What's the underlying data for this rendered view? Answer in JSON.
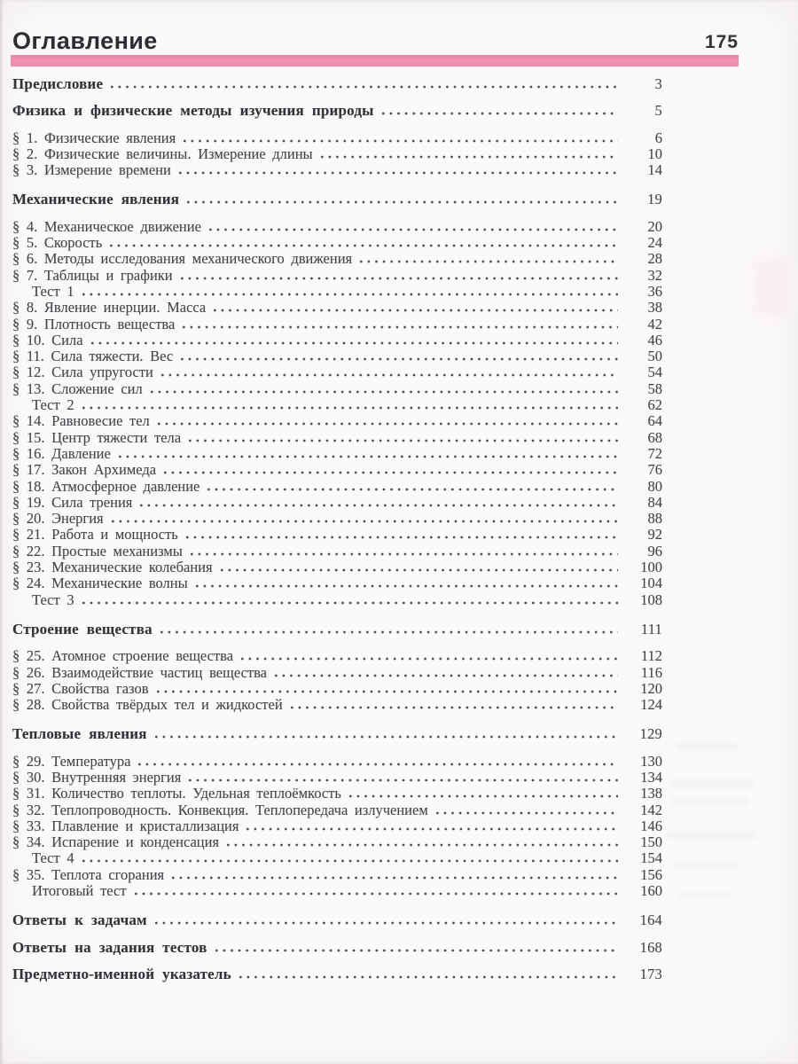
{
  "header": {
    "title": "Оглавление",
    "page_number": "175",
    "accent_color": "#ee8aab"
  },
  "toc": {
    "items": [
      {
        "kind": "chapter",
        "label": "Предисловие",
        "page": "3"
      },
      {
        "kind": "chapter",
        "label": "Физика и физические методы изучения природы",
        "page": "5"
      },
      {
        "kind": "entry",
        "label": "§ 1. Физические явления",
        "page": "6"
      },
      {
        "kind": "entry",
        "label": "§ 2. Физические величины. Измерение длины",
        "page": "10"
      },
      {
        "kind": "entry",
        "label": "§ 3. Измерение времени",
        "page": "14"
      },
      {
        "kind": "chapter",
        "label": "Механические явления",
        "page": "19"
      },
      {
        "kind": "entry",
        "label": "§ 4. Механическое движение",
        "page": "20"
      },
      {
        "kind": "entry",
        "label": "§ 5. Скорость",
        "page": "24"
      },
      {
        "kind": "entry",
        "label": "§ 6. Методы исследования механического движения",
        "page": "28"
      },
      {
        "kind": "entry",
        "label": "§ 7. Таблицы и графики",
        "page": "32"
      },
      {
        "kind": "sub",
        "label": "Тест 1",
        "page": "36"
      },
      {
        "kind": "entry",
        "label": "§ 8. Явление инерции. Масса",
        "page": "38"
      },
      {
        "kind": "entry",
        "label": "§ 9. Плотность вещества",
        "page": "42"
      },
      {
        "kind": "entry",
        "label": "§ 10. Сила",
        "page": "46"
      },
      {
        "kind": "entry",
        "label": "§ 11. Сила тяжести. Вес",
        "page": "50"
      },
      {
        "kind": "entry",
        "label": "§ 12. Сила упругости",
        "page": "54"
      },
      {
        "kind": "entry",
        "label": "§ 13. Сложение сил",
        "page": "58"
      },
      {
        "kind": "sub",
        "label": "Тест 2",
        "page": "62"
      },
      {
        "kind": "entry",
        "label": "§ 14. Равновесие тел",
        "page": "64"
      },
      {
        "kind": "entry",
        "label": "§ 15. Центр тяжести тела",
        "page": "68"
      },
      {
        "kind": "entry",
        "label": "§ 16. Давление",
        "page": "72"
      },
      {
        "kind": "entry",
        "label": "§ 17. Закон Архимеда",
        "page": "76"
      },
      {
        "kind": "entry",
        "label": "§ 18. Атмосферное давление",
        "page": "80"
      },
      {
        "kind": "entry",
        "label": "§ 19. Сила трения",
        "page": "84"
      },
      {
        "kind": "entry",
        "label": "§ 20. Энергия",
        "page": "88"
      },
      {
        "kind": "entry",
        "label": "§ 21. Работа и мощность",
        "page": "92"
      },
      {
        "kind": "entry",
        "label": "§ 22. Простые механизмы",
        "page": "96"
      },
      {
        "kind": "entry",
        "label": "§ 23. Механические колебания",
        "page": "100"
      },
      {
        "kind": "entry",
        "label": "§ 24. Механические волны",
        "page": "104"
      },
      {
        "kind": "sub",
        "label": "Тест 3",
        "page": "108"
      },
      {
        "kind": "chapter",
        "label": "Строение вещества",
        "page": "111"
      },
      {
        "kind": "entry",
        "label": "§ 25. Атомное строение вещества",
        "page": "112"
      },
      {
        "kind": "entry",
        "label": "§ 26. Взаимодействие частиц вещества",
        "page": "116"
      },
      {
        "kind": "entry",
        "label": "§ 27. Свойства газов",
        "page": "120"
      },
      {
        "kind": "entry",
        "label": "§ 28. Свойства твёрдых тел и жидкостей",
        "page": "124"
      },
      {
        "kind": "chapter",
        "label": "Тепловые явления",
        "page": "129"
      },
      {
        "kind": "entry",
        "label": "§ 29. Температура",
        "page": "130"
      },
      {
        "kind": "entry",
        "label": "§ 30. Внутренняя энергия",
        "page": "134"
      },
      {
        "kind": "entry",
        "label": "§ 31. Количество теплоты. Удельная теплоёмкость",
        "page": "138"
      },
      {
        "kind": "entry",
        "label": "§ 32. Теплопроводность. Конвекция. Теплопередача излучением",
        "page": "142"
      },
      {
        "kind": "entry",
        "label": "§ 33. Плавление и кристаллизация",
        "page": "146"
      },
      {
        "kind": "entry",
        "label": "§ 34. Испарение и конденсация",
        "page": "150"
      },
      {
        "kind": "sub",
        "label": "Тест 4",
        "page": "154"
      },
      {
        "kind": "entry",
        "label": "§ 35. Теплота сгорания",
        "page": "156"
      },
      {
        "kind": "sub",
        "label": "Итоговый тест",
        "page": "160"
      },
      {
        "kind": "chapter",
        "label": "Ответы к задачам",
        "page": "164"
      },
      {
        "kind": "chapter",
        "label": "Ответы на задания тестов",
        "page": "168"
      },
      {
        "kind": "chapter",
        "label": "Предметно-именной указатель",
        "page": "173"
      }
    ]
  }
}
